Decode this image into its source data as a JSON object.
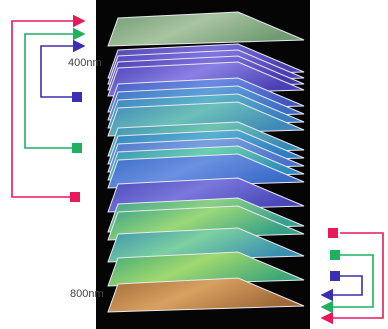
{
  "labels": {
    "start": "400nm",
    "end": "800nm"
  }
}
